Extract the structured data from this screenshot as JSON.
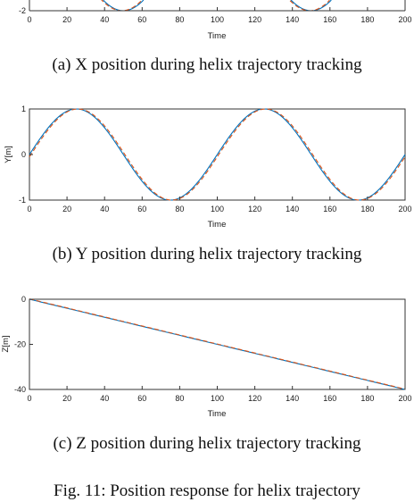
{
  "charts": [
    {
      "id": "x",
      "caption": "(a) X position during helix trajectory tracking",
      "chart_data": {
        "type": "line",
        "title": "",
        "xlabel": "Time",
        "ylabel": "",
        "xlim": [
          0,
          200
        ],
        "ylim": [
          -2,
          2
        ],
        "xticks": [
          "0",
          "20",
          "40",
          "60",
          "80",
          "100",
          "120",
          "140",
          "160",
          "180",
          "200"
        ],
        "yticks": [
          "-2"
        ],
        "grid": false,
        "series": [
          {
            "function": "2cos(2*pi*t/100)",
            "color": "#0072bd",
            "style": "solid"
          },
          {
            "function": "2cos(2*pi*t/100)",
            "color": "#d95319",
            "style": "dashed"
          }
        ]
      }
    },
    {
      "id": "y",
      "caption": "(b) Y position during helix trajectory tracking",
      "chart_data": {
        "type": "line",
        "title": "",
        "xlabel": "Time",
        "ylabel": "Y[m]",
        "xlim": [
          0,
          200
        ],
        "ylim": [
          -1,
          1
        ],
        "xticks": [
          "0",
          "20",
          "40",
          "60",
          "80",
          "100",
          "120",
          "140",
          "160",
          "180",
          "200"
        ],
        "yticks": [
          "-1",
          "0",
          "1"
        ],
        "grid": false,
        "series": [
          {
            "function": "sin(2*pi*t/100)",
            "color": "#0072bd",
            "style": "solid"
          },
          {
            "function": "sin(2*pi*t/100)",
            "color": "#d95319",
            "style": "dashed"
          }
        ]
      }
    },
    {
      "id": "z",
      "caption": "(c) Z position during helix trajectory tracking",
      "chart_data": {
        "type": "line",
        "title": "",
        "xlabel": "Time",
        "ylabel": "Z[m]",
        "xlim": [
          0,
          200
        ],
        "ylim": [
          -40,
          0
        ],
        "xticks": [
          "0",
          "20",
          "40",
          "60",
          "80",
          "100",
          "120",
          "140",
          "160",
          "180",
          "200"
        ],
        "yticks": [
          "-40",
          "-20",
          "0"
        ],
        "grid": false,
        "series": [
          {
            "function": "-0.2*t",
            "color": "#0072bd",
            "style": "solid"
          },
          {
            "function": "-0.2*t",
            "color": "#d95319",
            "style": "dashed"
          }
        ]
      }
    }
  ],
  "figure_caption": "Fig. 11: Position response for helix trajectory"
}
